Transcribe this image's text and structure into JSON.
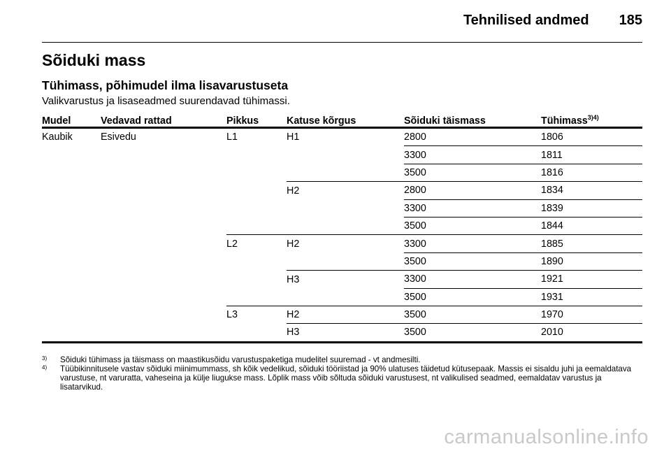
{
  "header": {
    "section": "Tehnilised andmed",
    "page_number": "185"
  },
  "title": "Sõiduki mass",
  "subtitle": "Tühimass, põhimudel ilma lisavarustuseta",
  "intro": "Valikvarustus ja lisaseadmed suurendavad tühimassi.",
  "table": {
    "headers": {
      "model": "Mudel",
      "drive": "Vedavad rattad",
      "length": "Pikkus",
      "roof": "Katuse kõrgus",
      "gross": "Sõiduki täismass",
      "empty": "Tühimass",
      "empty_refs": "3)4)"
    },
    "rows": [
      {
        "model": "Kaubik",
        "drive": "Esivedu",
        "length": "L1",
        "roof": "H1",
        "gross": "2800",
        "empty": "1806"
      },
      {
        "model": "",
        "drive": "",
        "length": "",
        "roof": "",
        "gross": "3300",
        "empty": "1811"
      },
      {
        "model": "",
        "drive": "",
        "length": "",
        "roof": "",
        "gross": "3500",
        "empty": "1816"
      },
      {
        "model": "",
        "drive": "",
        "length": "",
        "roof": "H2",
        "gross": "2800",
        "empty": "1834"
      },
      {
        "model": "",
        "drive": "",
        "length": "",
        "roof": "",
        "gross": "3300",
        "empty": "1839"
      },
      {
        "model": "",
        "drive": "",
        "length": "",
        "roof": "",
        "gross": "3500",
        "empty": "1844"
      },
      {
        "model": "",
        "drive": "",
        "length": "L2",
        "roof": "H2",
        "gross": "3300",
        "empty": "1885"
      },
      {
        "model": "",
        "drive": "",
        "length": "",
        "roof": "",
        "gross": "3500",
        "empty": "1890"
      },
      {
        "model": "",
        "drive": "",
        "length": "",
        "roof": "H3",
        "gross": "3300",
        "empty": "1921"
      },
      {
        "model": "",
        "drive": "",
        "length": "",
        "roof": "",
        "gross": "3500",
        "empty": "1931"
      },
      {
        "model": "",
        "drive": "",
        "length": "L3",
        "roof": "H2",
        "gross": "3500",
        "empty": "1970"
      },
      {
        "model": "",
        "drive": "",
        "length": "",
        "roof": "H3",
        "gross": "3500",
        "empty": "2010"
      }
    ]
  },
  "footnotes": [
    {
      "mark": "3)",
      "text": "Sõiduki tühimass ja täismass on maastikusõidu varustuspaketiga mudelitel suuremad - vt andmesilti."
    },
    {
      "mark": "4)",
      "text": "Tüübikinnitusele vastav sõiduki miinimummass, sh kõik vedelikud, sõiduki tööriistad ja 90% ulatuses täidetud kütusepaak. Massis ei sisaldu juhi ja eemaldatava varustuse, nt varuratta, vaheseina ja külje liugukse mass. Lõplik mass võib sõltuda sõiduki varustusest, nt valikulised seadmed, eemaldatav varustus ja lisatarvikud."
    }
  ],
  "watermark": "carmanualsonline.info"
}
